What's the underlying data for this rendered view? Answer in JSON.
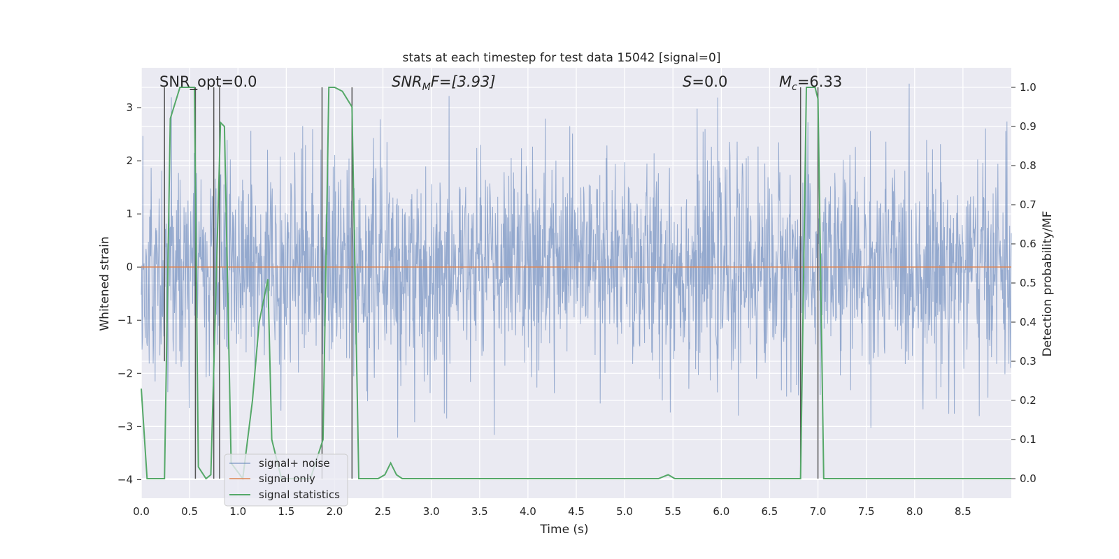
{
  "chart_data": {
    "type": "line",
    "title": "stats at each timestep for test data 15042 [signal=0]",
    "xlabel": "Time (s)",
    "ylabel": "Whitened strain",
    "ylabel_right": "Detection probability/MF",
    "xlim": [
      0.0,
      9.0
    ],
    "ylim": [
      -4.35,
      3.75
    ],
    "ylim_right": [
      -0.05,
      1.05
    ],
    "x_ticks": [
      0.0,
      0.5,
      1.0,
      1.5,
      2.0,
      2.5,
      3.0,
      3.5,
      4.0,
      4.5,
      5.0,
      5.5,
      6.0,
      6.5,
      7.0,
      7.5,
      8.0,
      8.5
    ],
    "x_tick_labels": [
      "0.0",
      "0.5",
      "1.0",
      "1.5",
      "2.0",
      "2.5",
      "3.0",
      "3.5",
      "4.0",
      "4.5",
      "5.0",
      "5.5",
      "6.0",
      "6.5",
      "7.0",
      "7.5",
      "8.0",
      "8.5"
    ],
    "y_ticks": [
      3,
      2,
      1,
      0,
      -1,
      -2,
      -3,
      -4
    ],
    "y_tick_labels": [
      "3",
      "2",
      "1",
      "0",
      "−1",
      "−2",
      "−3",
      "−4"
    ],
    "y_ticks_right": [
      1.0,
      0.9,
      0.8,
      0.7,
      0.6,
      0.5,
      0.4,
      0.3,
      0.2,
      0.1,
      0.0
    ],
    "y_tick_labels_right": [
      "1.0",
      "0.9",
      "0.8",
      "0.7",
      "0.6",
      "0.5",
      "0.4",
      "0.3",
      "0.2",
      "0.1",
      "0.0"
    ],
    "annotations": {
      "snr_opt": "SNR_opt=0.0",
      "snr_mf_prefix": "SNR",
      "snr_mf_sub": "M",
      "snr_mf_rest": "F=[3.93]",
      "s_var": "S",
      "s_rest": "=0.0",
      "mc_var": "M",
      "mc_sub": "c",
      "mc_rest": "=6.33"
    },
    "legend": {
      "location": "lower-left",
      "entries": [
        "signal+ noise",
        "signal only",
        "signal statistics"
      ]
    },
    "series": [
      {
        "name": "signal+ noise",
        "color": "#4c72b0",
        "description": "whitened noise, approx. Gaussian, sigma ~1.0, range about -4 to 3.4",
        "noise": {
          "sigma": 1.0,
          "min": -4.0,
          "max": 3.45,
          "samples": 2200
        }
      },
      {
        "name": "signal only",
        "color": "#dd8452",
        "x": [
          0.0,
          9.0
        ],
        "y": [
          0.0,
          0.0
        ]
      },
      {
        "name": "signal statistics",
        "color": "#55a868",
        "axis": "right",
        "x": [
          0.0,
          0.06,
          0.15,
          0.24,
          0.3,
          0.4,
          0.55,
          0.59,
          0.67,
          0.72,
          0.82,
          0.86,
          0.93,
          1.05,
          1.15,
          1.22,
          1.31,
          1.35,
          1.45,
          1.6,
          1.75,
          1.88,
          1.94,
          2.0,
          2.08,
          2.13,
          2.18,
          2.25,
          2.32,
          2.45,
          2.52,
          2.58,
          2.64,
          2.7,
          3.05,
          3.13,
          3.19,
          5.35,
          5.45,
          5.52,
          6.82,
          6.88,
          6.97,
          7.0,
          7.06,
          9.0
        ],
        "y": [
          0.23,
          0.0,
          0.0,
          0.0,
          0.92,
          1.0,
          1.0,
          0.03,
          0.0,
          0.01,
          0.91,
          0.9,
          0.04,
          0.0,
          0.2,
          0.4,
          0.51,
          0.1,
          0.0,
          0.0,
          0.0,
          0.1,
          1.0,
          1.0,
          0.99,
          0.97,
          0.95,
          0.0,
          0.0,
          0.0,
          0.01,
          0.04,
          0.01,
          0.0,
          0.0,
          0.0,
          0.0,
          0.0,
          0.01,
          0.0,
          0.0,
          1.0,
          1.0,
          0.97,
          0.0,
          0.0
        ]
      }
    ],
    "vertical_markers": [
      {
        "x": 0.24,
        "y_top": 1.0,
        "y_bottom": 0.3
      },
      {
        "x": 0.56,
        "y_top": 1.0,
        "y_bottom": 0.0
      },
      {
        "x": 0.75,
        "y_top": 1.0,
        "y_bottom": 0.0
      },
      {
        "x": 0.81,
        "y_top": 1.0,
        "y_bottom": 0.0
      },
      {
        "x": 1.87,
        "y_top": 1.0,
        "y_bottom": 0.0
      },
      {
        "x": 2.18,
        "y_top": 1.0,
        "y_bottom": 0.0
      },
      {
        "x": 6.82,
        "y_top": 1.0,
        "y_bottom": 0.0
      },
      {
        "x": 7.0,
        "y_top": 1.0,
        "y_bottom": 0.0
      }
    ],
    "grid": true
  }
}
